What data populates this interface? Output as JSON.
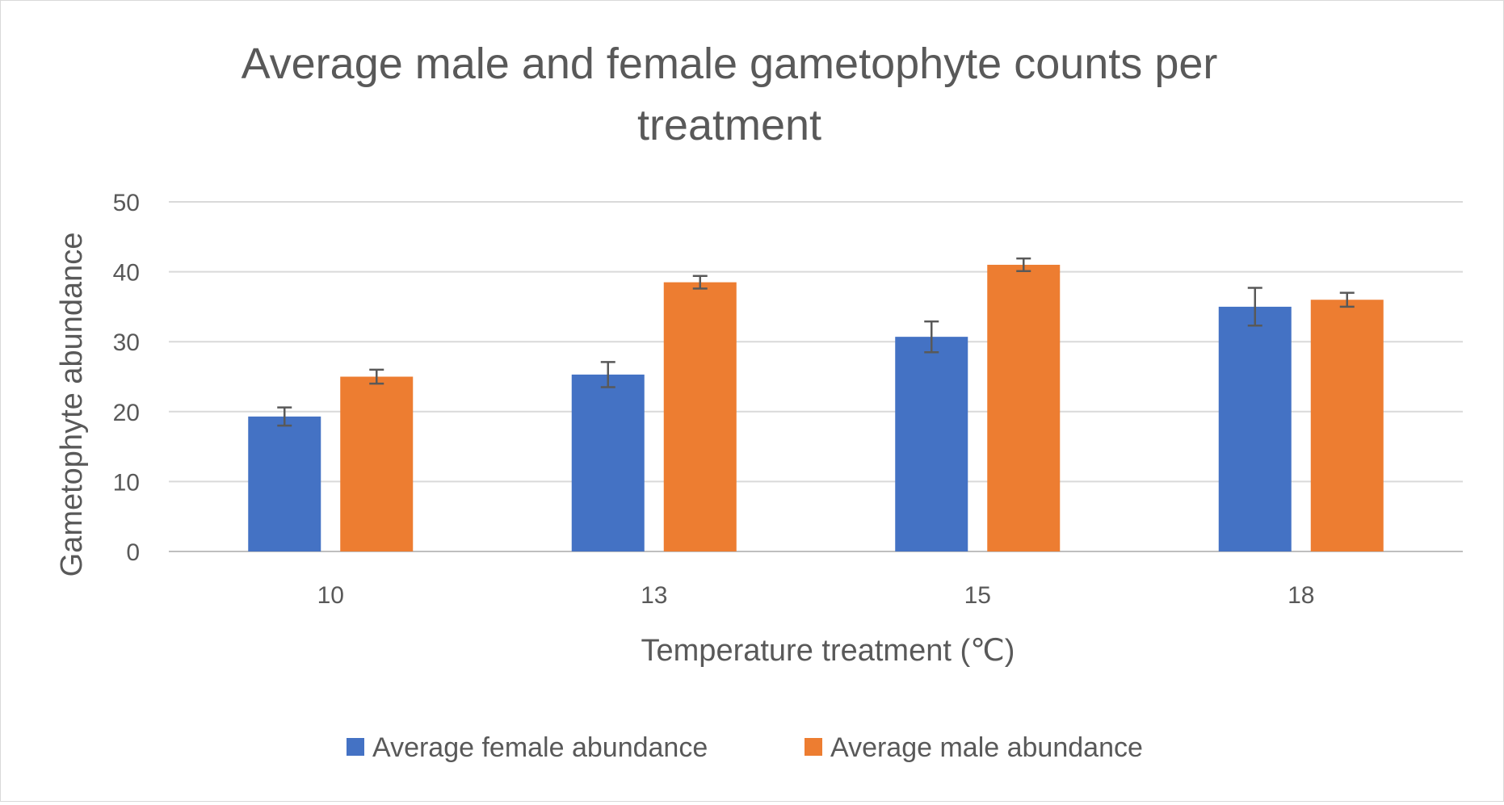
{
  "chart_data": {
    "type": "bar",
    "title_lines": [
      "Average male and female gametophyte counts per",
      "treatment"
    ],
    "xlabel": "Temperature treatment (℃)",
    "ylabel": "Gametophyte abundance",
    "categories": [
      "10",
      "13",
      "15",
      "18"
    ],
    "ylim": [
      0,
      50
    ],
    "yticks": [
      "0",
      "10",
      "20",
      "30",
      "40",
      "50"
    ],
    "grid": true,
    "legend_position": "bottom",
    "series": [
      {
        "name": "Average female abundance",
        "color": "#4472C4",
        "values": [
          19.3,
          25.3,
          30.7,
          35.0
        ],
        "errors": [
          1.3,
          1.8,
          2.2,
          2.7
        ]
      },
      {
        "name": "Average male abundance",
        "color": "#ED7D31",
        "values": [
          25.0,
          38.5,
          41.0,
          36.0
        ],
        "errors": [
          1.0,
          0.9,
          0.9,
          1.0
        ]
      }
    ]
  }
}
